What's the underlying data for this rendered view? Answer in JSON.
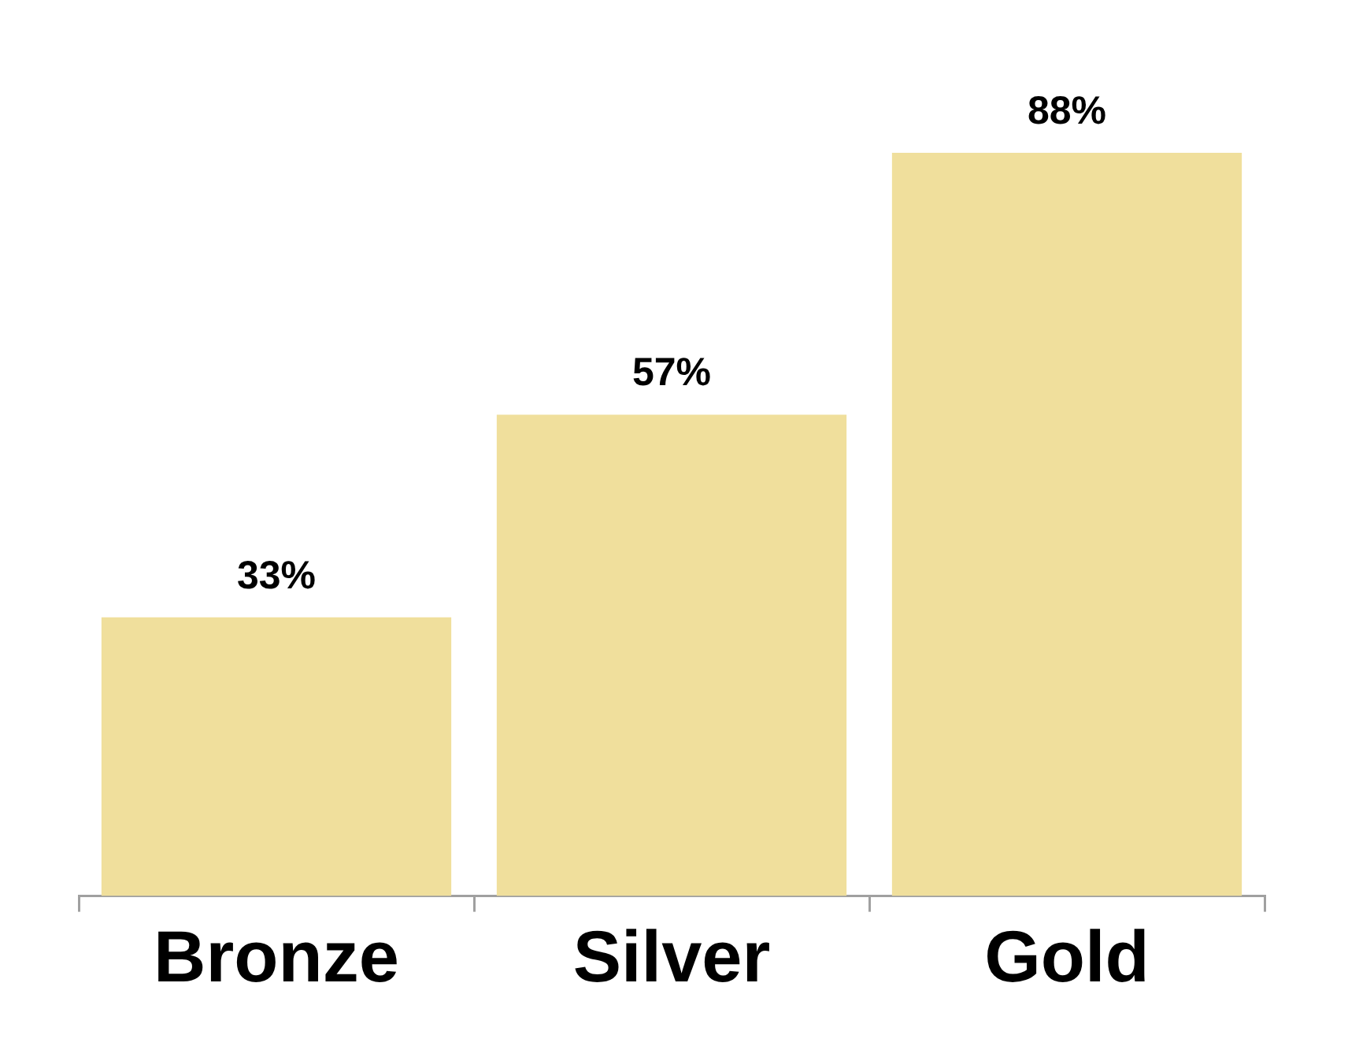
{
  "chart_data": {
    "type": "bar",
    "categories": [
      "Bronze",
      "Silver",
      "Gold"
    ],
    "values": [
      33,
      57,
      88
    ],
    "value_labels": [
      "33%",
      "57%",
      "88%"
    ],
    "color": "#f0df9c",
    "tick_labels": "x"
  }
}
